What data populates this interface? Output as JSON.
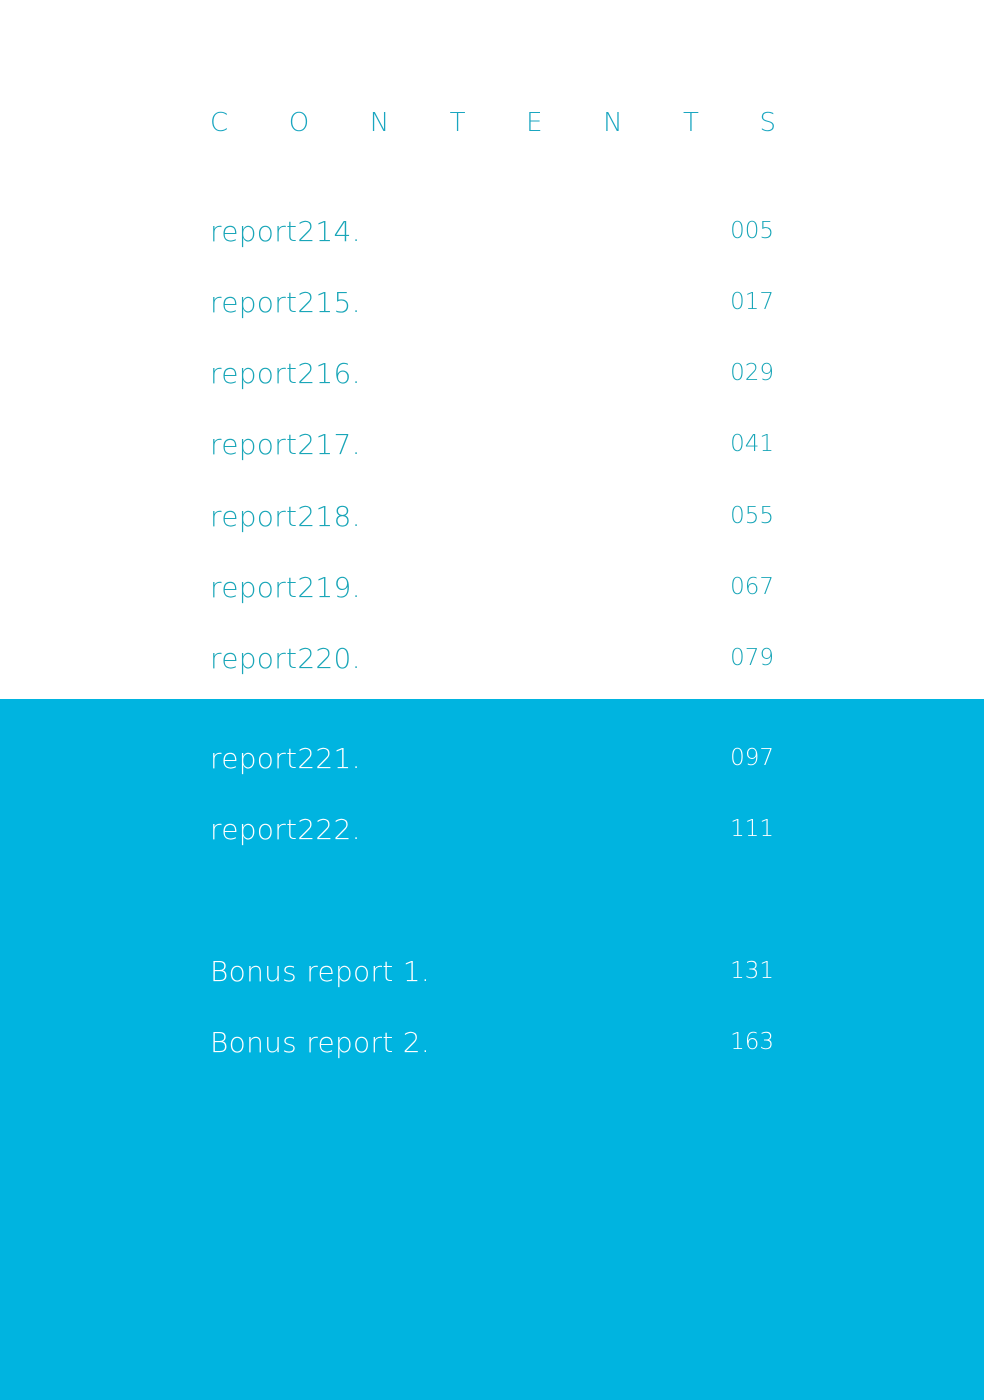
{
  "title": "CONTENTS",
  "colors": {
    "accent_text": "#1aa6b8",
    "band_background": "#00b4e0",
    "band_text": "#ffffff"
  },
  "entries": [
    {
      "label": "report214.",
      "page": "005"
    },
    {
      "label": "report215.",
      "page": "017"
    },
    {
      "label": "report216.",
      "page": "029"
    },
    {
      "label": "report217.",
      "page": "041"
    },
    {
      "label": "report218.",
      "page": "055"
    },
    {
      "label": "report219.",
      "page": "067"
    },
    {
      "label": "report220.",
      "page": "079"
    }
  ],
  "band_entries": [
    {
      "label": "report221.",
      "page": "097"
    },
    {
      "label": "report222.",
      "page": "111"
    }
  ],
  "bonus_entries": [
    {
      "label": "Bonus report 1.",
      "page": "131"
    },
    {
      "label": "Bonus report 2.",
      "page": "163"
    }
  ]
}
